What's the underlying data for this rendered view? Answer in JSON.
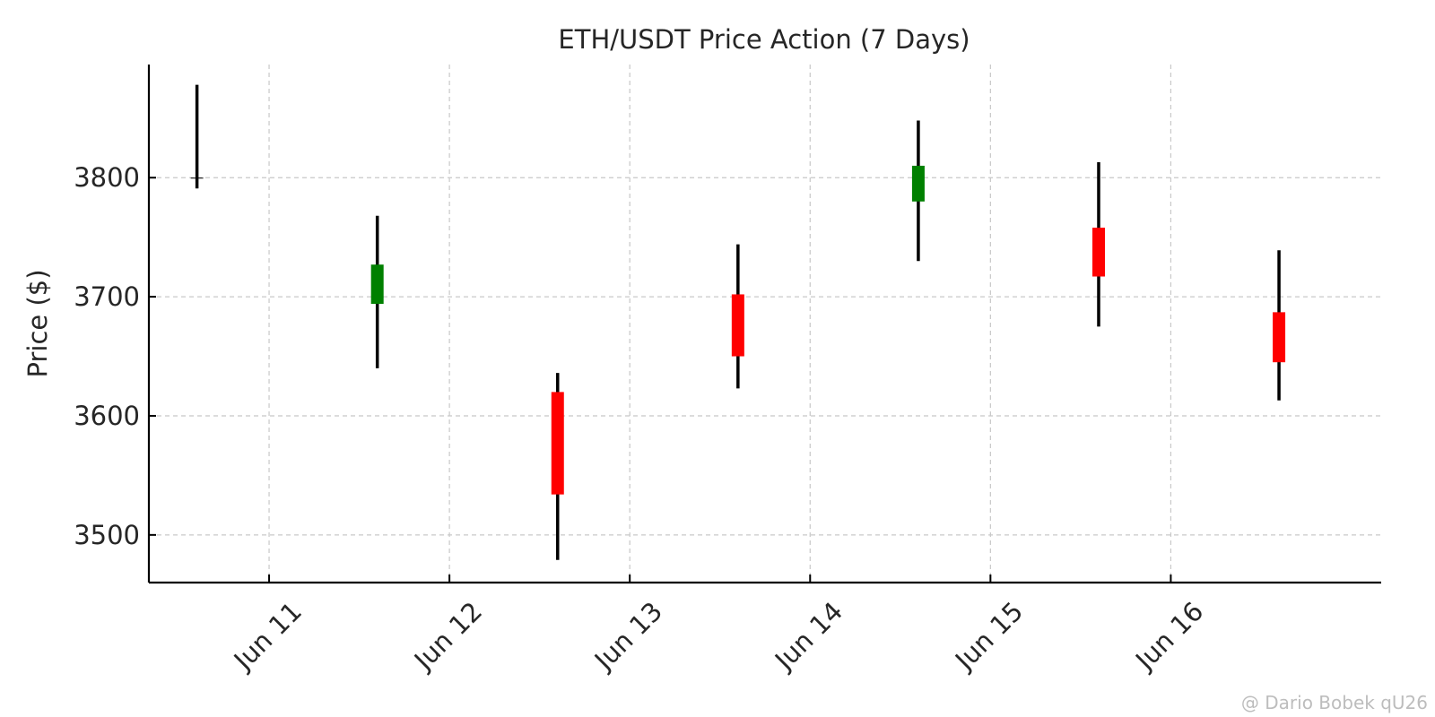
{
  "chart_data": {
    "type": "candlestick",
    "title": "ETH/USDT Price Action (7 Days)",
    "ylabel": "Price ($)",
    "xlabel": "",
    "ylim": [
      3460,
      3895
    ],
    "xlim": [
      "2024-06-10T08:00",
      "2024-06-17T04:00"
    ],
    "x_ticks": [
      {
        "date": "2024-06-11",
        "label": "Jun 11"
      },
      {
        "date": "2024-06-12",
        "label": "Jun 12"
      },
      {
        "date": "2024-06-13",
        "label": "Jun 13"
      },
      {
        "date": "2024-06-14",
        "label": "Jun 14"
      },
      {
        "date": "2024-06-15",
        "label": "Jun 15"
      },
      {
        "date": "2024-06-16",
        "label": "Jun 16"
      }
    ],
    "y_ticks": [
      3500,
      3600,
      3700,
      3800
    ],
    "grid": true,
    "colors": {
      "up": "#008000",
      "down": "#ff0000",
      "wick": "#000000",
      "grid": "#c8c8c8",
      "axis": "#000000",
      "text": "#262626"
    },
    "candles": [
      {
        "date": "2024-06-10T14:24",
        "open": 3800,
        "high": 3878,
        "low": 3791,
        "close": 3800
      },
      {
        "date": "2024-06-11T14:24",
        "open": 3694,
        "high": 3768,
        "low": 3640,
        "close": 3727
      },
      {
        "date": "2024-06-12T14:24",
        "open": 3620,
        "high": 3636,
        "low": 3479,
        "close": 3534
      },
      {
        "date": "2024-06-13T14:24",
        "open": 3702,
        "high": 3744,
        "low": 3623,
        "close": 3650
      },
      {
        "date": "2024-06-14T14:24",
        "open": 3780,
        "high": 3848,
        "low": 3730,
        "close": 3810
      },
      {
        "date": "2024-06-15T14:24",
        "open": 3758,
        "high": 3813,
        "low": 3675,
        "close": 3717
      },
      {
        "date": "2024-06-16T14:24",
        "open": 3687,
        "high": 3739,
        "low": 3613,
        "close": 3645
      }
    ]
  },
  "watermark": "@ Dario Bobek qU26"
}
